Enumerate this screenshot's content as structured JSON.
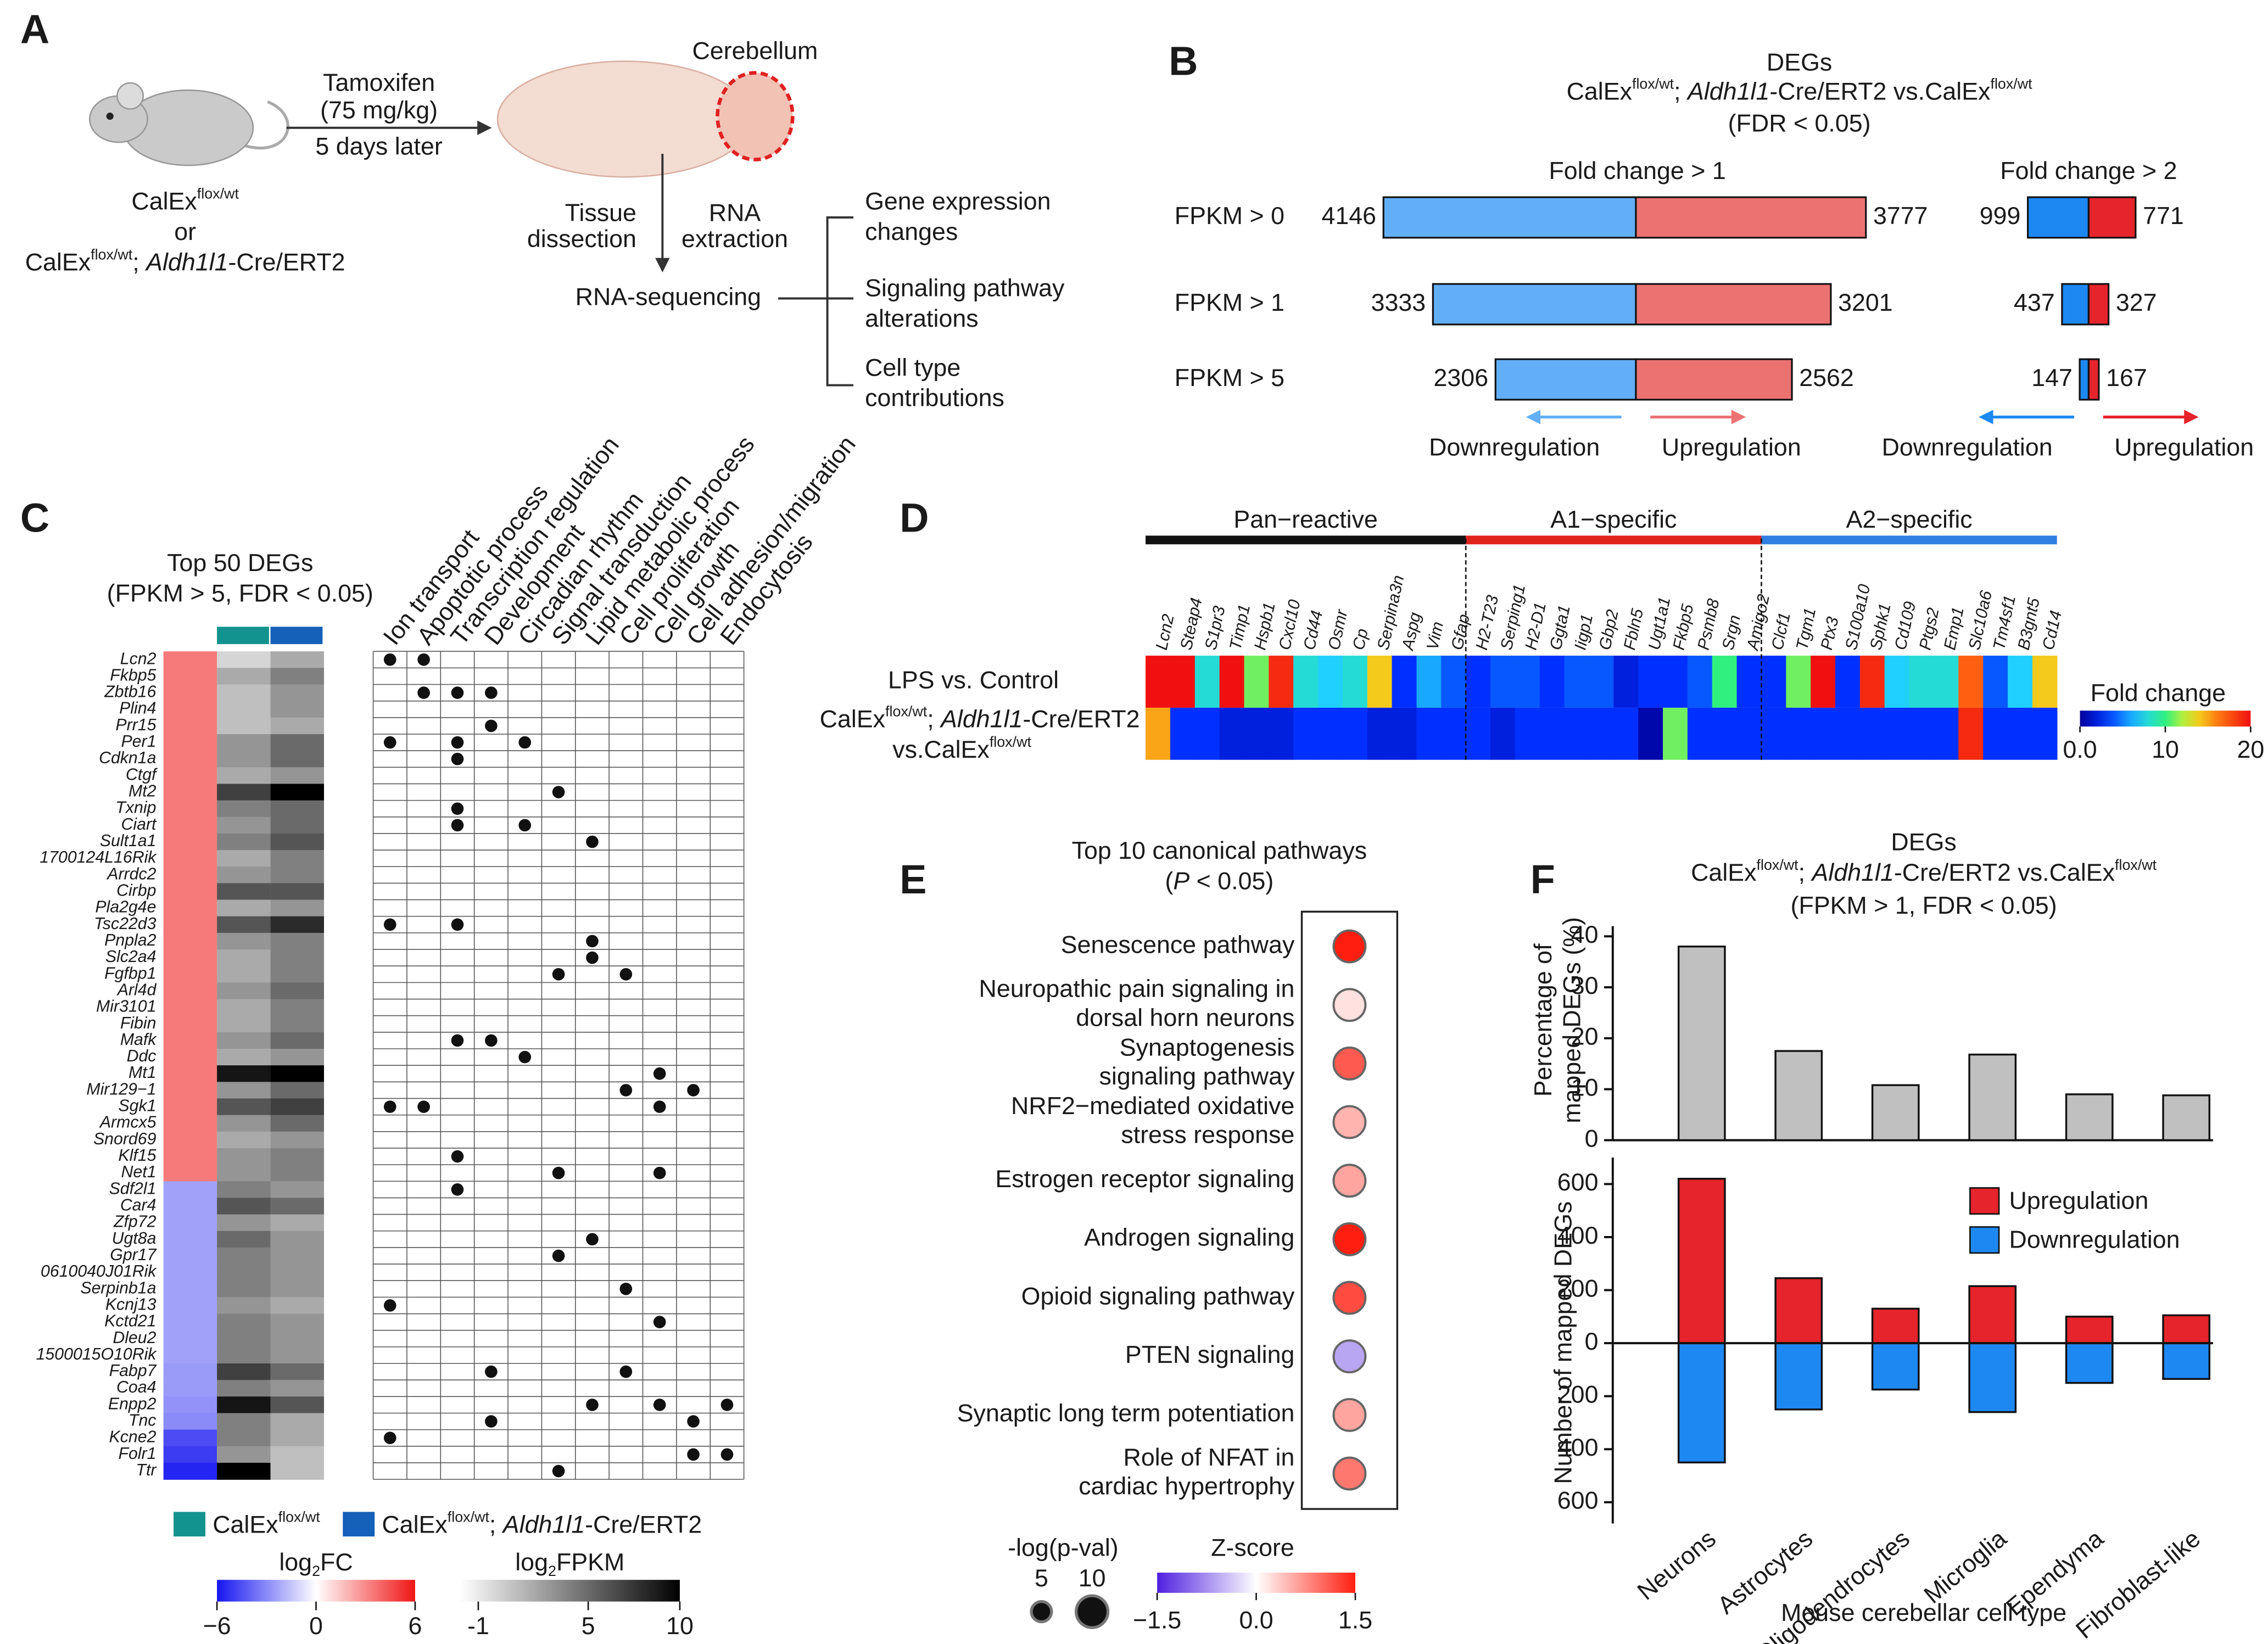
{
  "panel_labels": [
    "A",
    "B",
    "C",
    "D",
    "E",
    "F"
  ],
  "panel_a": {
    "treatment": [
      "Tamoxifen",
      "(75 mg/kg)",
      "5 days later"
    ],
    "region": "Cerebellum",
    "genotype1": [
      "CalEx",
      "flox/wt"
    ],
    "or": "or",
    "genotype2": [
      "CalEx",
      "flox/wt",
      "; ",
      "Aldh1l1",
      "-Cre/ERT2"
    ],
    "step1": [
      "Tissue",
      "dissection"
    ],
    "step2": [
      "RNA",
      "extraction"
    ],
    "method": "RNA-sequencing",
    "outcomes": [
      [
        "Gene expression",
        "changes"
      ],
      [
        "Signaling pathway",
        "alterations"
      ],
      [
        "Cell type",
        "contributions"
      ]
    ]
  },
  "chart_data": [
    {
      "type": "butterfly",
      "title": "DEGs",
      "subtitle": [
        "CalEx",
        "flox/wt",
        "; ",
        "Aldh1l1",
        "-Cre/ERT2 vs.CalEx",
        "flox/wt"
      ],
      "note": "(FDR < 0.05)",
      "categories": [
        "FPKM > 0",
        "FPKM > 1",
        "FPKM > 5"
      ],
      "panels": [
        {
          "title": "Fold change > 1",
          "series": [
            {
              "name": "Downregulation",
              "color": "#62aff7",
              "values": [
                4146,
                3333,
                2306
              ]
            },
            {
              "name": "Upregulation",
              "color": "#ec7272",
              "values": [
                3777,
                3201,
                2562
              ]
            }
          ]
        },
        {
          "title": "Fold change > 2",
          "series": [
            {
              "name": "Downregulation",
              "color": "#1e88f2",
              "values": [
                999,
                437,
                147
              ]
            },
            {
              "name": "Upregulation",
              "color": "#e5242b",
              "values": [
                771,
                327,
                167
              ]
            }
          ]
        }
      ]
    },
    {
      "type": "matrix",
      "title": "Top 50 DEGs",
      "subtitle": "(FPKM > 5, FDR < 0.05)",
      "genes": [
        "Lcn2",
        "Fkbp5",
        "Zbtb16",
        "Plin4",
        "Prr15",
        "Per1",
        "Cdkn1a",
        "Ctgf",
        "Mt2",
        "Txnip",
        "Ciart",
        "Sult1a1",
        "1700124L16Rik",
        "Arrdc2",
        "Cirbp",
        "Pla2g4e",
        "Tsc22d3",
        "Pnpla2",
        "Slc2a4",
        "Fgfbp1",
        "Arl4d",
        "Mir3101",
        "Fibin",
        "Mafk",
        "Ddc",
        "Mt1",
        "Mir129−1",
        "Sgk1",
        "Armcx5",
        "Snord69",
        "Klf15",
        "Net1",
        "Sdf2l1",
        "Car4",
        "Zfp72",
        "Ugt8a",
        "Gpr17",
        "0610040J01Rik",
        "Serpinb1a",
        "Kcnj13",
        "Kctd21",
        "Dleu2",
        "1500015O10Rik",
        "Fabp7",
        "Coa4",
        "Enpp2",
        "Tnc",
        "Kcne2",
        "Folr1",
        "Ttr"
      ],
      "log2fc": {
        "label": [
          "log",
          "2",
          "FC"
        ],
        "lim": [
          -6,
          6
        ],
        "ticks": [
          {
            "value": -6,
            "label": "−6"
          },
          0,
          6
        ],
        "values": [
          3.4,
          3.4,
          3.4,
          3.4,
          3.4,
          3.4,
          3.4,
          3.4,
          3.4,
          3.4,
          3.4,
          3.4,
          3.4,
          3.4,
          3.4,
          3.4,
          3.4,
          3.4,
          3.4,
          3.4,
          3.4,
          3.4,
          3.4,
          3.4,
          3.4,
          3.4,
          3.4,
          3.4,
          3.4,
          3.4,
          3.4,
          3.4,
          -2.4,
          -2.4,
          -2.4,
          -2.4,
          -2.4,
          -2.4,
          -2.4,
          -2.4,
          -2.4,
          -2.4,
          -2.4,
          -2.6,
          -2.6,
          -2.8,
          -3,
          -4.6,
          -5,
          -5.6
        ]
      },
      "fpkm": {
        "label": [
          "log",
          "2",
          "FPKM"
        ],
        "lim": [
          -2,
          10
        ],
        "ticks": [
          -1,
          5,
          10
        ],
        "series": [
          {
            "name": [
              "CalEx",
              "flox/wt"
            ],
            "color": "#13938f",
            "values": [
              0,
              2,
              1,
              1,
              1,
              3,
              3,
              2,
              7,
              4,
              3,
              4,
              2,
              3,
              6,
              2,
              6,
              3,
              2,
              2,
              3,
              2,
              2,
              3,
              2,
              9,
              3,
              6,
              3,
              2,
              3,
              3,
              4,
              6,
              3,
              5,
              4,
              4,
              4,
              3,
              4,
              4,
              4,
              7,
              4,
              9,
              4,
              4,
              3,
              10
            ]
          },
          {
            "name": [
              "CalEx",
              "flox/wt",
              "; ",
              "Aldh1l1",
              "-Cre/ERT2"
            ],
            "color": "#1560b8",
            "values": [
              2,
              4,
              3,
              3,
              2,
              5,
              5,
              3,
              10,
              5,
              5,
              6,
              4,
              4,
              6,
              3,
              8,
              4,
              4,
              4,
              5,
              4,
              4,
              5,
              3,
              10,
              5,
              7,
              5,
              3,
              4,
              4,
              3,
              5,
              2,
              3,
              3,
              3,
              3,
              2,
              3,
              3,
              3,
              5,
              3,
              6,
              2,
              2,
              1,
              1
            ]
          }
        ]
      },
      "functions": [
        "Ion transport",
        "Apoptotic process",
        "Transcription regulation",
        "Development",
        "Circadian rhythm",
        "Signal transduction",
        "Lipid metabolic process",
        "Cell proliferation",
        "Cell growth",
        "Cell adhesion/migration",
        "Endocytosis"
      ],
      "dots": [
        [
          0,
          1
        ],
        [],
        [
          1,
          2,
          3
        ],
        [],
        [
          3
        ],
        [
          0,
          2,
          4
        ],
        [
          2
        ],
        [],
        [
          5
        ],
        [
          2
        ],
        [
          2,
          4
        ],
        [
          6
        ],
        [],
        [],
        [],
        [],
        [
          0,
          2
        ],
        [
          6
        ],
        [
          6
        ],
        [
          5,
          7
        ],
        [],
        [],
        [],
        [
          2,
          3
        ],
        [
          4
        ],
        [
          8
        ],
        [
          7,
          9
        ],
        [
          0,
          1,
          8
        ],
        [],
        [],
        [
          2
        ],
        [
          5,
          8
        ],
        [
          2
        ],
        [],
        [],
        [
          6
        ],
        [
          5
        ],
        [],
        [
          7
        ],
        [
          0
        ],
        [
          8
        ],
        [],
        [],
        [
          3,
          7
        ],
        [],
        [
          6,
          8,
          10
        ],
        [
          3,
          9
        ],
        [
          0
        ],
        [
          9,
          10
        ],
        [
          5
        ]
      ]
    },
    {
      "type": "heatmap",
      "groups": [
        {
          "name": "Pan−reactive",
          "color": "#111111",
          "genes": [
            "Lcn2",
            "Steap4",
            "S1pr3",
            "Timp1",
            "Hspb1",
            "Cxcl10",
            "Cd44",
            "Osmr",
            "Cp",
            "Serpina3n",
            "Aspg",
            "Vim",
            "Gfap"
          ]
        },
        {
          "name": "A1−specific",
          "color": "#e0231c",
          "genes": [
            "H2-T23",
            "Serping1",
            "H2-D1",
            "Ggta1",
            "Iigp1",
            "Gbp2",
            "Fbln5",
            "Ugt1a1",
            "Fkbp5",
            "Psmb8",
            "Srgn",
            "Amigo2"
          ]
        },
        {
          "name": "A2−specific",
          "color": "#2f7fe0",
          "genes": [
            "Clcf1",
            "Tgm1",
            "Ptx3",
            "S100a10",
            "Sphk1",
            "Cd109",
            "Ptgs2",
            "Emp1",
            "Slc10a6",
            "Tm4sf1",
            "B3gnt5",
            "Cd14"
          ]
        }
      ],
      "rows": [
        [
          "LPS vs. Control"
        ],
        [
          "CalEx",
          "flox/wt",
          "; ",
          "Aldh1l1",
          "-Cre/ERT2",
          "vs.CalEx",
          "flox/wt"
        ]
      ],
      "values": [
        [
          20,
          20,
          8,
          20,
          11,
          19,
          8,
          7,
          8,
          14,
          3,
          6,
          4,
          3,
          4,
          4,
          3,
          4,
          4,
          2,
          3,
          3,
          4,
          10,
          3,
          3,
          11,
          20,
          3,
          19,
          7,
          8,
          8,
          17,
          4,
          7,
          14
        ],
        [
          15,
          3,
          3,
          2,
          2,
          2,
          3,
          3,
          3,
          2,
          2,
          3,
          3,
          3,
          2,
          3,
          3,
          3,
          3,
          3,
          0.5,
          11,
          3,
          3,
          3,
          3,
          3,
          3,
          3,
          3,
          3,
          3,
          3,
          19,
          3,
          3,
          3
        ]
      ],
      "legend_title": "Fold change",
      "clim": [
        0,
        20
      ],
      "cticks": [
        {
          "value": 0,
          "label": "0.0"
        },
        10,
        20
      ]
    },
    {
      "type": "dot",
      "title": "Top 10 canonical pathways",
      "subtitle": [
        "(",
        "P",
        " < 0.05)"
      ],
      "pathways": [
        [
          "Senescence pathway"
        ],
        [
          "Neuropathic pain signaling in",
          "dorsal horn neurons"
        ],
        [
          "Synaptogenesis",
          "signaling pathway"
        ],
        [
          "NRF2−mediated oxidative",
          "stress response"
        ],
        [
          "Estrogen receptor signaling"
        ],
        [
          "Androgen signaling"
        ],
        [
          "Opioid signaling pathway"
        ],
        [
          "PTEN signaling"
        ],
        [
          "Synaptic long term potentiation"
        ],
        [
          "Role of NFAT in",
          "cardiac hypertrophy"
        ]
      ],
      "neglogp": [
        10,
        10,
        10,
        10,
        10,
        10,
        10,
        10,
        10,
        10
      ],
      "zscore": [
        1.5,
        0.2,
        1.1,
        0.5,
        0.6,
        1.5,
        1.2,
        -0.6,
        0.6,
        0.9
      ],
      "size_label": "-log(p-val)",
      "size_ticks": [
        5,
        10
      ],
      "color_label": "Z-score",
      "clim": [
        -1.5,
        1.5
      ],
      "cticks": [
        {
          "value": -1.5,
          "label": "−1.5"
        },
        {
          "value": 0,
          "label": "0.0"
        },
        1.5
      ]
    },
    {
      "type": "bar",
      "title": "DEGs",
      "subtitle": [
        "CalEx",
        "flox/wt",
        "; ",
        "Aldh1l1",
        "-Cre/ERT2 vs.CalEx",
        "flox/wt"
      ],
      "note": "(FPKM > 1, FDR < 0.05)",
      "ylabel": [
        "Percentage of",
        "mapped DEGs (%)"
      ],
      "values": [
        38,
        17.5,
        10.8,
        16.8,
        9,
        8.8
      ],
      "color": "#c0c0c0",
      "ylim": [
        0,
        42
      ],
      "yticks": [
        0,
        10,
        20,
        30,
        40
      ]
    },
    {
      "type": "diverging-bar",
      "ylabel": "Number of mapped DEGs",
      "xlabel": "Mouse cerebellar cell type",
      "categories": [
        "Neurons",
        "Astrocytes",
        "Oligodendrocytes",
        "Microglia",
        "Ependyma",
        "Fibroblast-like"
      ],
      "series": [
        {
          "name": "Upregulation",
          "color": "#e5242b",
          "values": [
            620,
            245,
            130,
            215,
            100,
            105
          ]
        },
        {
          "name": "Downregulation",
          "color": "#1e88f2",
          "values": [
            -450,
            -250,
            -175,
            -260,
            -150,
            -135
          ]
        }
      ],
      "ylim": [
        -680,
        700
      ],
      "yticks": [
        {
          "value": -600,
          "label": "600"
        },
        {
          "value": -400,
          "label": "400"
        },
        {
          "value": -200,
          "label": "200"
        },
        0,
        200,
        400,
        600
      ]
    }
  ]
}
